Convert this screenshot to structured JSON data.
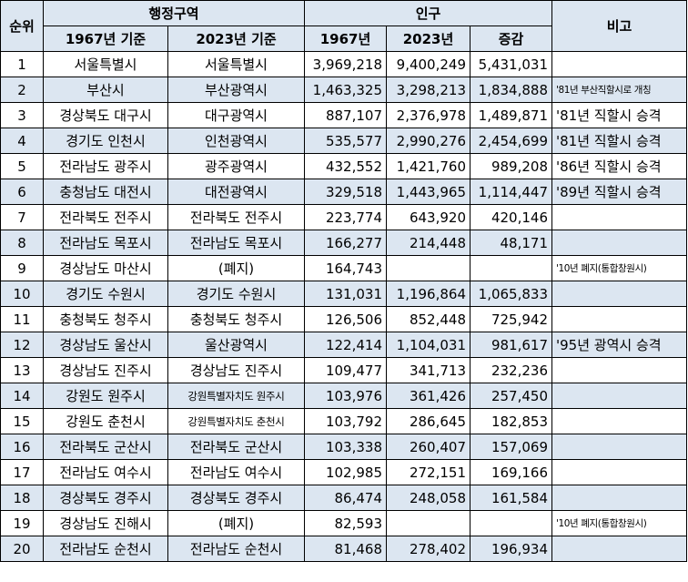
{
  "headers": {
    "rank": "순위",
    "admin_region": "행정구역",
    "population": "인구",
    "notes": "비고",
    "y1967_basis": "1967년 기준",
    "y2023_basis": "2023년 기준",
    "y1967": "1967년",
    "y2023": "2023년",
    "change": "증감"
  },
  "rows": [
    {
      "rank": "1",
      "region_1967": "서울특별시",
      "region_2023": "서울특별시",
      "pop_1967": "3,969,218",
      "pop_2023": "9,400,249",
      "change": "5,431,031",
      "note": ""
    },
    {
      "rank": "2",
      "region_1967": "부산시",
      "region_2023": "부산광역시",
      "pop_1967": "1,463,325",
      "pop_2023": "3,298,213",
      "change": "1,834,888",
      "note": "'81년 부산직할시로 개칭"
    },
    {
      "rank": "3",
      "region_1967": "경상북도 대구시",
      "region_2023": "대구광역시",
      "pop_1967": "887,107",
      "pop_2023": "2,376,978",
      "change": "1,489,871",
      "note": "'81년 직할시 승격"
    },
    {
      "rank": "4",
      "region_1967": "경기도 인천시",
      "region_2023": "인천광역시",
      "pop_1967": "535,577",
      "pop_2023": "2,990,276",
      "change": "2,454,699",
      "note": "'81년 직할시 승격"
    },
    {
      "rank": "5",
      "region_1967": "전라남도 광주시",
      "region_2023": "광주광역시",
      "pop_1967": "432,552",
      "pop_2023": "1,421,760",
      "change": "989,208",
      "note": "'86년 직할시 승격"
    },
    {
      "rank": "6",
      "region_1967": "충청남도 대전시",
      "region_2023": "대전광역시",
      "pop_1967": "329,518",
      "pop_2023": "1,443,965",
      "change": "1,114,447",
      "note": "'89년 직할시 승격"
    },
    {
      "rank": "7",
      "region_1967": "전라북도 전주시",
      "region_2023": "전라북도 전주시",
      "pop_1967": "223,774",
      "pop_2023": "643,920",
      "change": "420,146",
      "note": ""
    },
    {
      "rank": "8",
      "region_1967": "전라남도 목포시",
      "region_2023": "전라남도 목포시",
      "pop_1967": "166,277",
      "pop_2023": "214,448",
      "change": "48,171",
      "note": ""
    },
    {
      "rank": "9",
      "region_1967": "경상남도 마산시",
      "region_2023": "(폐지)",
      "pop_1967": "164,743",
      "pop_2023": "",
      "change": "",
      "note": "'10년 폐지(통합창원시)"
    },
    {
      "rank": "10",
      "region_1967": "경기도 수원시",
      "region_2023": "경기도 수원시",
      "pop_1967": "131,031",
      "pop_2023": "1,196,864",
      "change": "1,065,833",
      "note": ""
    },
    {
      "rank": "11",
      "region_1967": "충청북도 청주시",
      "region_2023": "충청북도 청주시",
      "pop_1967": "126,506",
      "pop_2023": "852,448",
      "change": "725,942",
      "note": ""
    },
    {
      "rank": "12",
      "region_1967": "경상남도 울산시",
      "region_2023": "울산광역시",
      "pop_1967": "122,414",
      "pop_2023": "1,104,031",
      "change": "981,617",
      "note": "'95년 광역시 승격"
    },
    {
      "rank": "13",
      "region_1967": "경상남도 진주시",
      "region_2023": "경상남도 진주시",
      "pop_1967": "109,477",
      "pop_2023": "341,713",
      "change": "232,236",
      "note": ""
    },
    {
      "rank": "14",
      "region_1967": "강원도 원주시",
      "region_2023": "강원특별자치도 원주시",
      "pop_1967": "103,976",
      "pop_2023": "361,426",
      "change": "257,450",
      "note": ""
    },
    {
      "rank": "15",
      "region_1967": "강원도 춘천시",
      "region_2023": "강원특별자치도 춘천시",
      "pop_1967": "103,792",
      "pop_2023": "286,645",
      "change": "182,853",
      "note": ""
    },
    {
      "rank": "16",
      "region_1967": "전라북도 군산시",
      "region_2023": "전라북도 군산시",
      "pop_1967": "103,338",
      "pop_2023": "260,407",
      "change": "157,069",
      "note": ""
    },
    {
      "rank": "17",
      "region_1967": "전라남도 여수시",
      "region_2023": "전라남도 여수시",
      "pop_1967": "102,985",
      "pop_2023": "272,151",
      "change": "169,166",
      "note": ""
    },
    {
      "rank": "18",
      "region_1967": "경상북도 경주시",
      "region_2023": "경상북도 경주시",
      "pop_1967": "86,474",
      "pop_2023": "248,058",
      "change": "161,584",
      "note": ""
    },
    {
      "rank": "19",
      "region_1967": "경상남도 진해시",
      "region_2023": "(폐지)",
      "pop_1967": "82,593",
      "pop_2023": "",
      "change": "",
      "note": "'10년 폐지(통합창원시)"
    },
    {
      "rank": "20",
      "region_1967": "전라남도 순천시",
      "region_2023": "전라남도 순천시",
      "pop_1967": "81,468",
      "pop_2023": "278,402",
      "change": "196,934",
      "note": ""
    }
  ]
}
